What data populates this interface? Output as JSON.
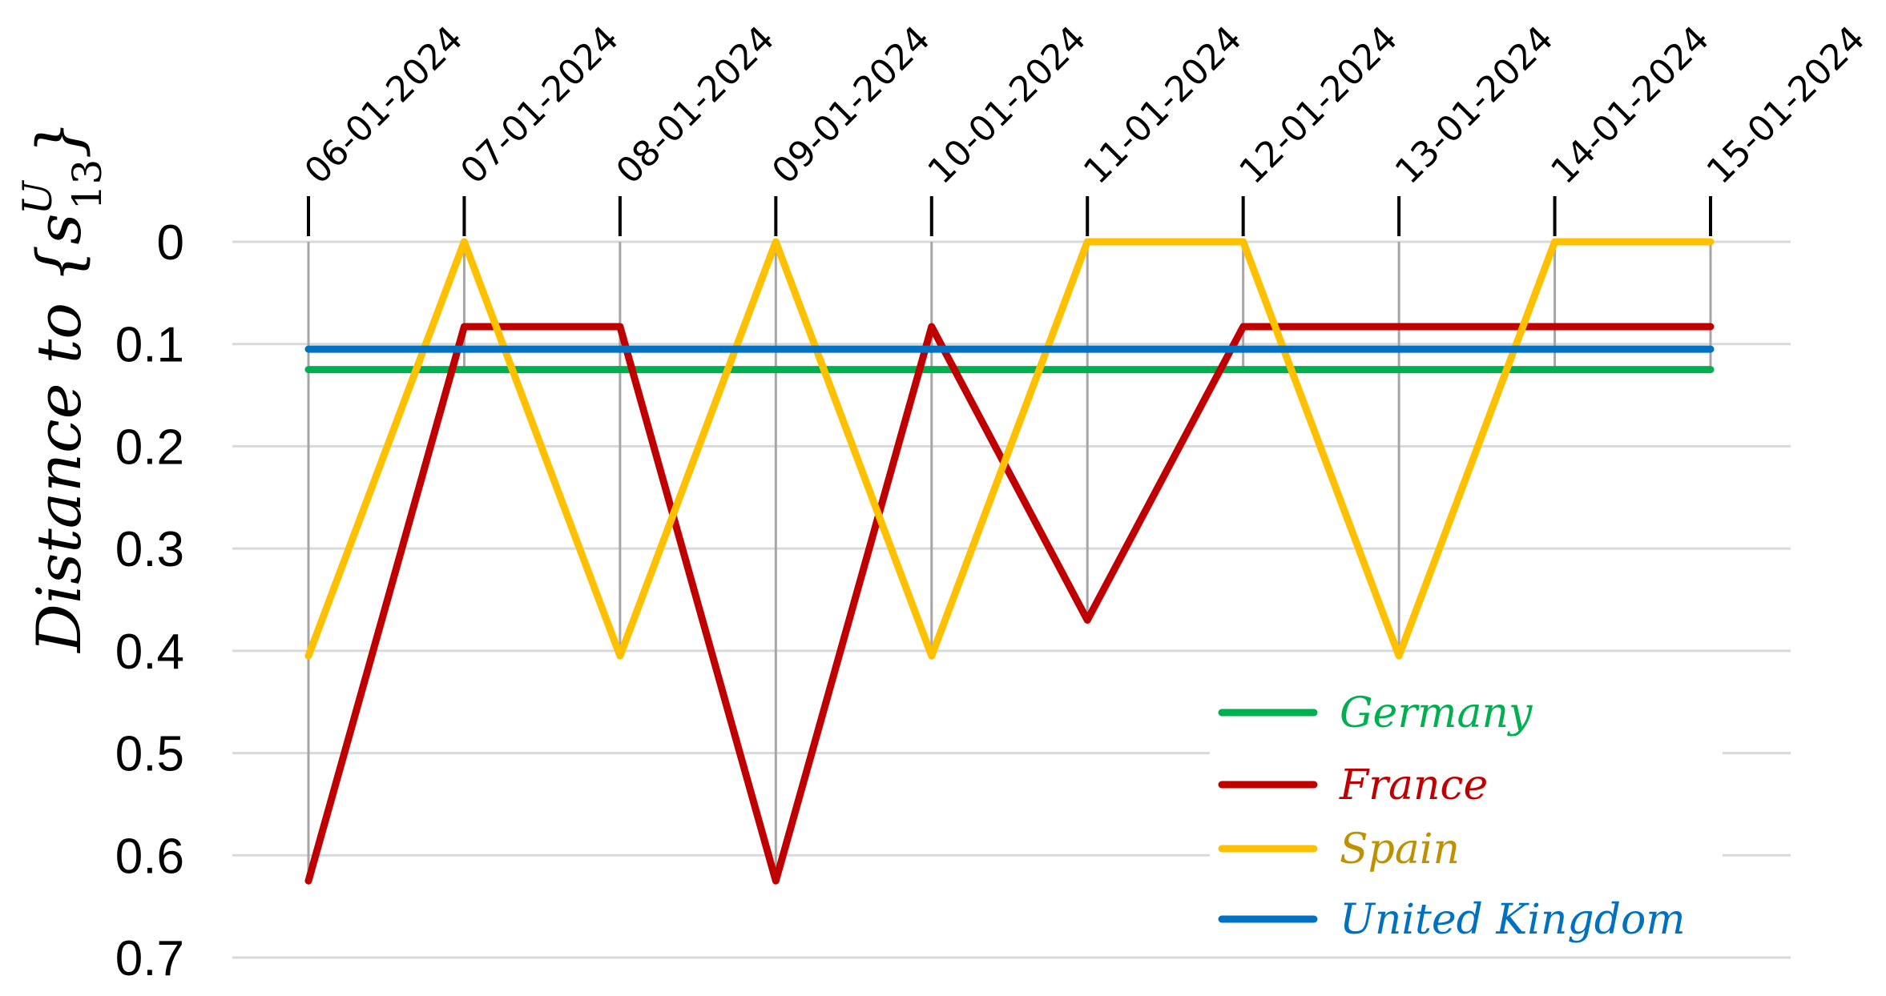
{
  "chart_data": {
    "type": "line",
    "ylabel_main": "Distance to ",
    "ylabel_brace_open": "{",
    "ylabel_sym": "s",
    "ylabel_sup": "U",
    "ylabel_sub": "13",
    "ylabel_brace_close": "}",
    "xlabel": "",
    "y_inverted": true,
    "ylim": [
      0,
      0.7
    ],
    "yticks": [
      "0",
      "0.1",
      "0.2",
      "0.3",
      "0.4",
      "0.5",
      "0.6",
      "0.7"
    ],
    "x": [
      "06-01-2024",
      "07-01-2024",
      "08-01-2024",
      "09-01-2024",
      "10-01-2024",
      "11-01-2024",
      "12-01-2024",
      "13-01-2024",
      "14-01-2024",
      "15-01-2024"
    ],
    "x_axis_position": "top",
    "grid": true,
    "legend_position": "bottom-right",
    "series": [
      {
        "name": "Germany",
        "color": "#00b050",
        "text_color": "#00b050",
        "values": [
          0.125,
          0.125,
          0.125,
          0.125,
          0.125,
          0.125,
          0.125,
          0.125,
          0.125,
          0.125
        ]
      },
      {
        "name": "France",
        "color": "#c00000",
        "text_color": "#c00000",
        "values": [
          0.625,
          0.083,
          0.083,
          0.625,
          0.083,
          0.37,
          0.083,
          0.083,
          0.083,
          0.083
        ]
      },
      {
        "name": "Spain",
        "color": "#ffc000",
        "text_color": "#bf9000",
        "values": [
          0.405,
          0.0,
          0.405,
          0.0,
          0.405,
          0.0,
          0.0,
          0.405,
          0.0,
          0.0
        ]
      },
      {
        "name": "United Kingdom",
        "color": "#0070c0",
        "text_color": "#0070c0",
        "values": [
          0.105,
          0.105,
          0.105,
          0.105,
          0.105,
          0.105,
          0.105,
          0.105,
          0.105,
          0.105
        ]
      }
    ]
  }
}
